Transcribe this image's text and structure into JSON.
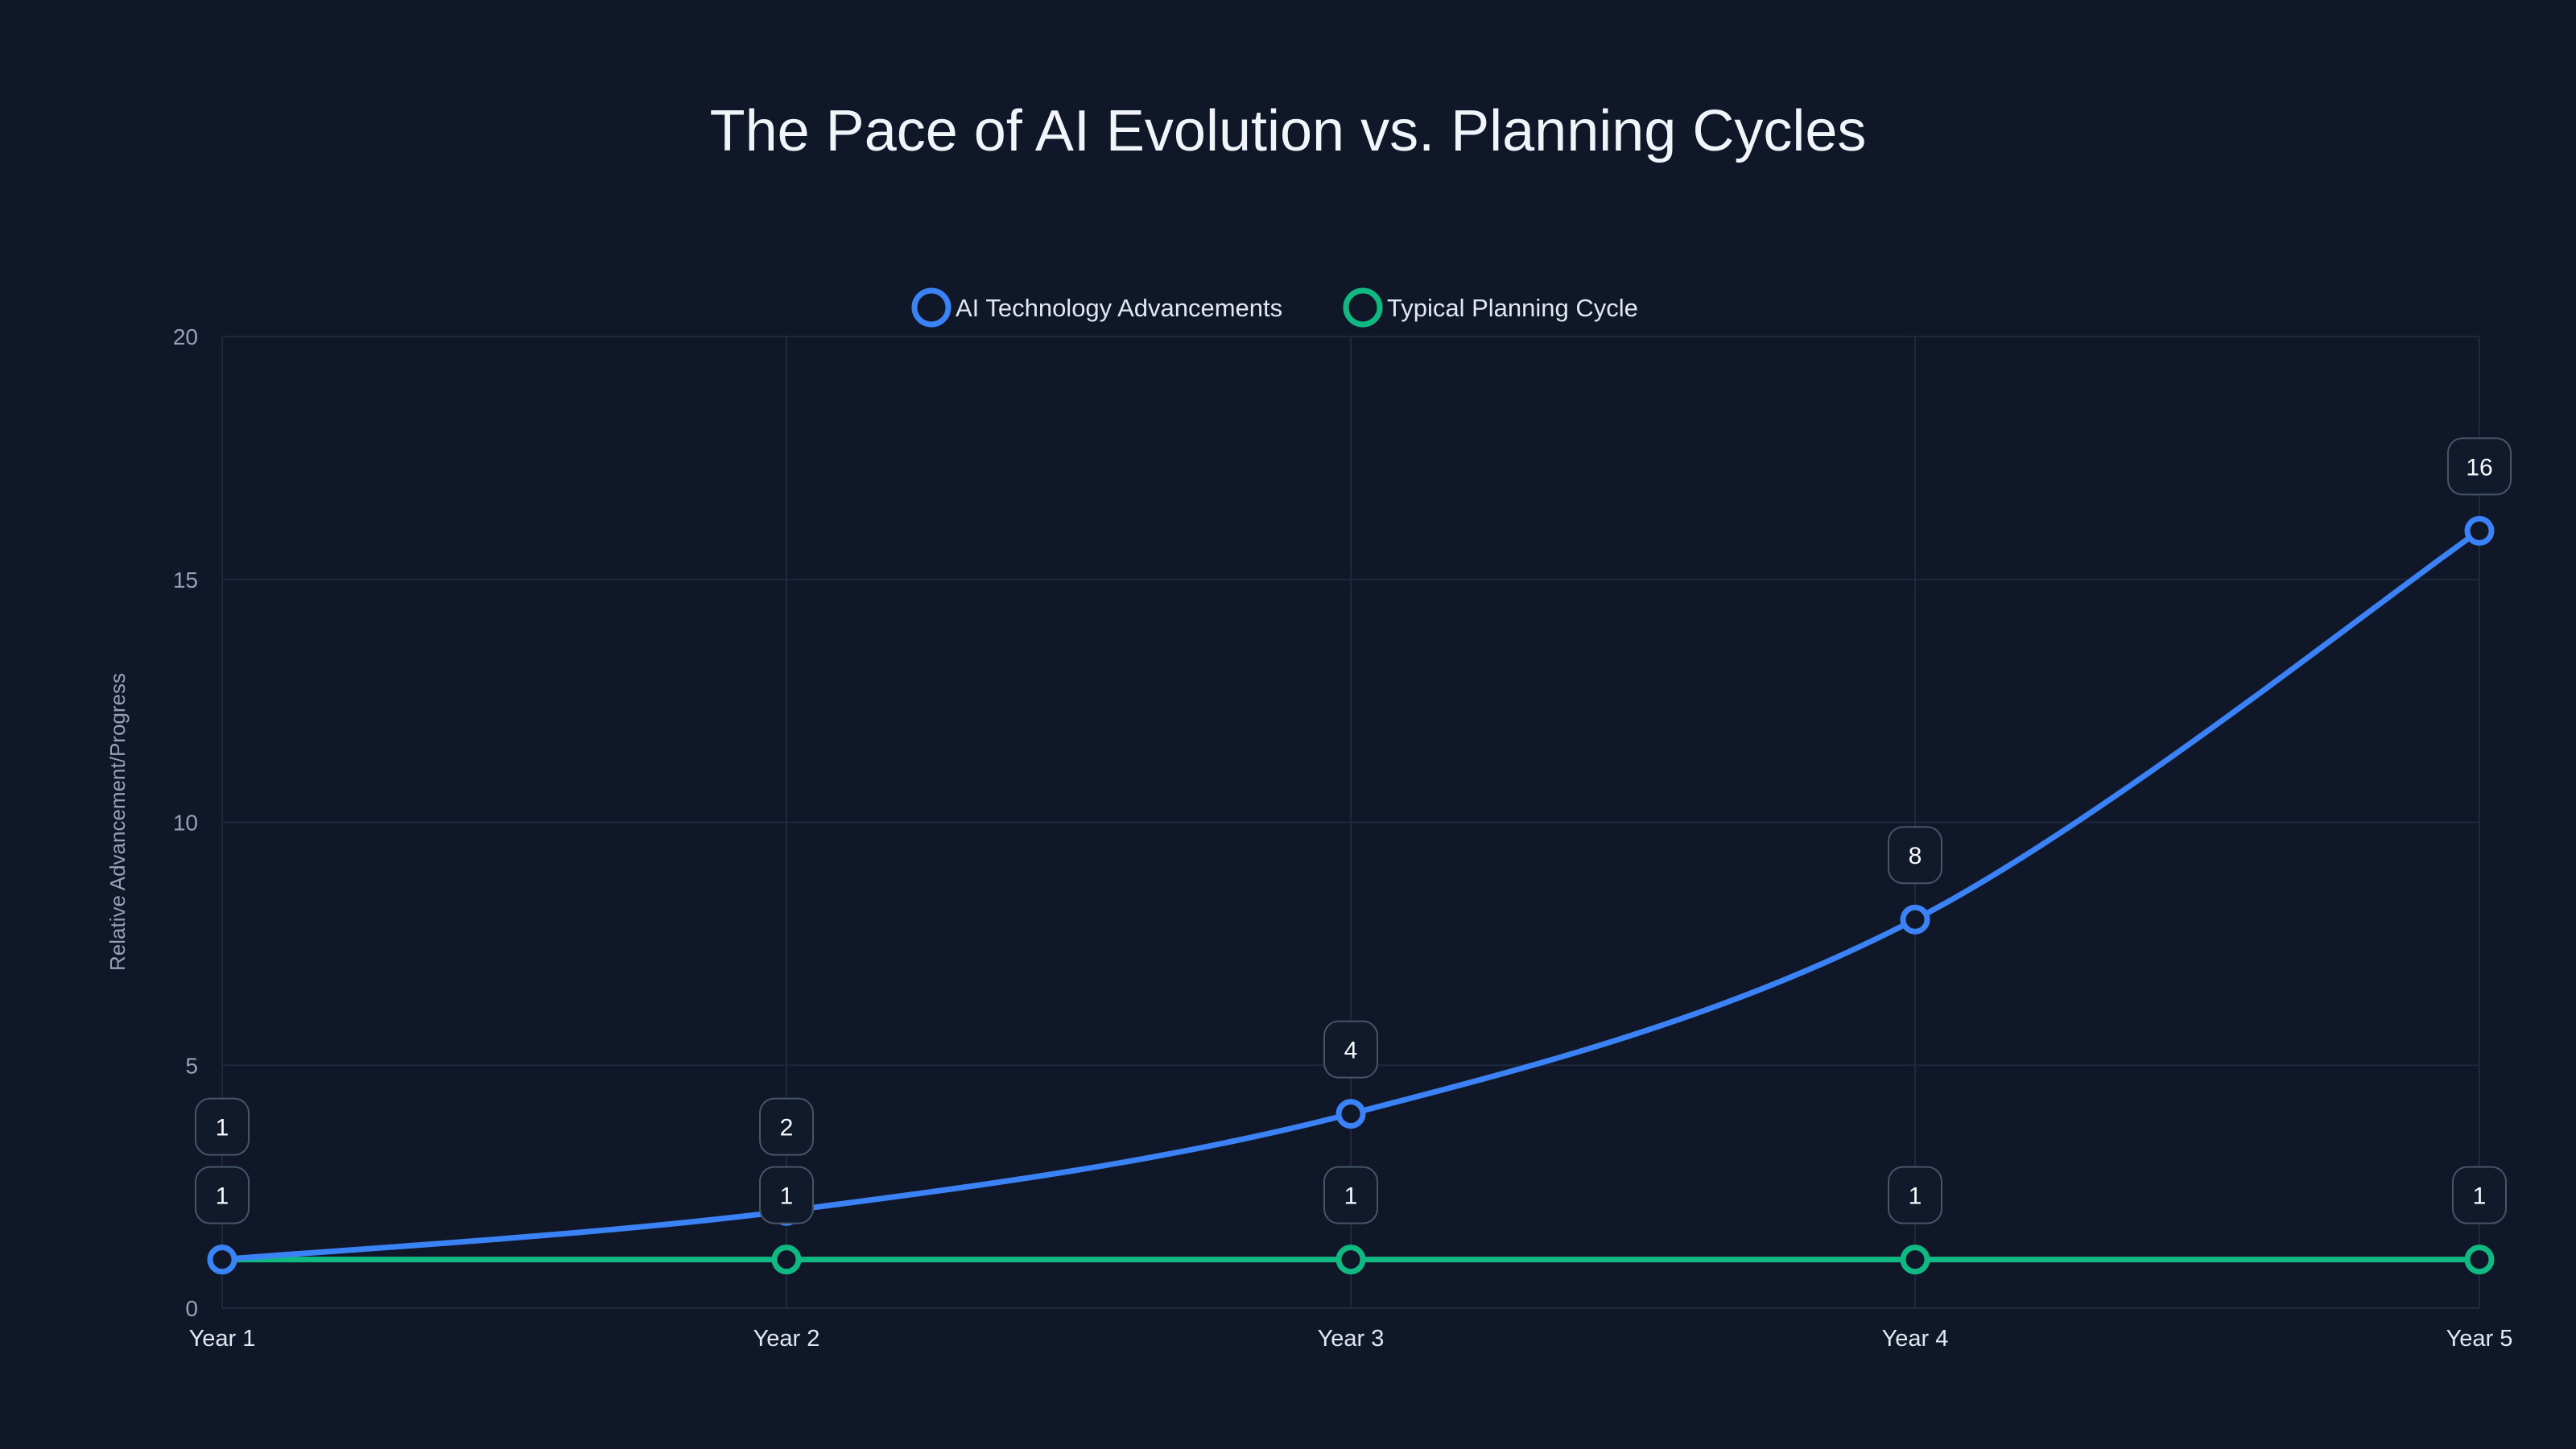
{
  "chart_data": {
    "type": "line",
    "title": "The Pace of AI Evolution vs. Planning Cycles",
    "xlabel": "",
    "ylabel": "Relative Advancement/Progress",
    "categories": [
      "Year 1",
      "Year 2",
      "Year 3",
      "Year 4",
      "Year 5"
    ],
    "ylim": [
      0,
      20
    ],
    "yticks": [
      0,
      5,
      10,
      15,
      20
    ],
    "grid": true,
    "legend_position": "top-center",
    "series": [
      {
        "name": "AI Technology Advancements",
        "color": "#3b82f6",
        "values": [
          1,
          2,
          4,
          8,
          16
        ],
        "smooth": true
      },
      {
        "name": "Typical Planning Cycle",
        "color": "#10b981",
        "values": [
          1,
          1,
          1,
          1,
          1
        ],
        "smooth": false
      }
    ]
  }
}
